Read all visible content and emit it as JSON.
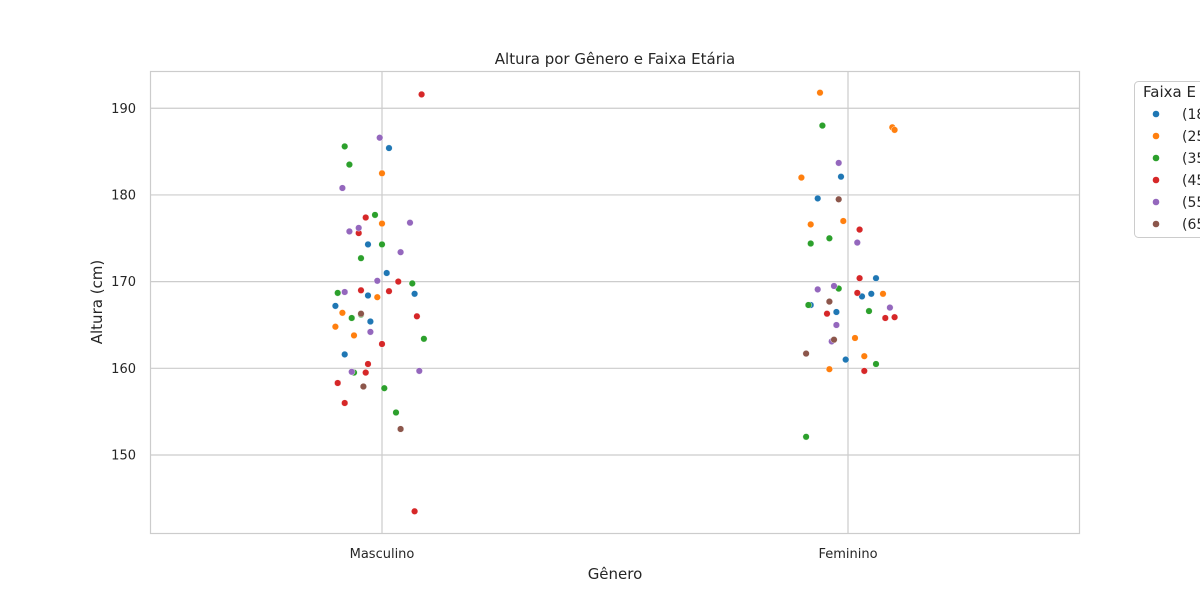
{
  "chart_data": {
    "type": "scatter",
    "title": "Altura por Gênero e Faixa Etária",
    "xlabel": "Gênero",
    "ylabel": "Altura (cm)",
    "categories": [
      "Masculino",
      "Feminino"
    ],
    "ylim": [
      141,
      194.3
    ],
    "yticks": [
      150,
      160,
      170,
      180,
      190
    ],
    "grid": true,
    "legend": {
      "title": "Faixa E",
      "placement": "outside-right"
    },
    "series": [
      {
        "name": "(18",
        "color": "#1f77b4",
        "points": [
          {
            "x": "Masculino",
            "jitter": -0.1,
            "y": 167.2
          },
          {
            "x": "Masculino",
            "jitter": -0.08,
            "y": 161.6
          },
          {
            "x": "Masculino",
            "jitter": -0.03,
            "y": 168.4
          },
          {
            "x": "Masculino",
            "jitter": -0.03,
            "y": 174.3
          },
          {
            "x": "Masculino",
            "jitter": -0.025,
            "y": 165.4
          },
          {
            "x": "Masculino",
            "jitter": 0.01,
            "y": 171.0
          },
          {
            "x": "Masculino",
            "jitter": 0.015,
            "y": 185.4
          },
          {
            "x": "Masculino",
            "jitter": 0.07,
            "y": 168.6
          },
          {
            "x": "Feminino",
            "jitter": -0.08,
            "y": 167.3
          },
          {
            "x": "Feminino",
            "jitter": -0.065,
            "y": 179.6
          },
          {
            "x": "Feminino",
            "jitter": -0.025,
            "y": 166.5
          },
          {
            "x": "Feminino",
            "jitter": -0.015,
            "y": 182.1
          },
          {
            "x": "Feminino",
            "jitter": -0.005,
            "y": 161.0
          },
          {
            "x": "Feminino",
            "jitter": 0.03,
            "y": 168.3
          },
          {
            "x": "Feminino",
            "jitter": 0.05,
            "y": 168.6
          },
          {
            "x": "Feminino",
            "jitter": 0.06,
            "y": 170.4
          }
        ]
      },
      {
        "name": "(25",
        "color": "#ff7f0e",
        "points": [
          {
            "x": "Masculino",
            "jitter": -0.1,
            "y": 164.8
          },
          {
            "x": "Masculino",
            "jitter": -0.085,
            "y": 166.4
          },
          {
            "x": "Masculino",
            "jitter": -0.06,
            "y": 163.8
          },
          {
            "x": "Masculino",
            "jitter": -0.01,
            "y": 168.2
          },
          {
            "x": "Masculino",
            "jitter": 0.0,
            "y": 176.7
          },
          {
            "x": "Masculino",
            "jitter": 0.0,
            "y": 182.5
          },
          {
            "x": "Feminino",
            "jitter": -0.1,
            "y": 182.0
          },
          {
            "x": "Feminino",
            "jitter": -0.08,
            "y": 176.6
          },
          {
            "x": "Feminino",
            "jitter": -0.04,
            "y": 159.9
          },
          {
            "x": "Feminino",
            "jitter": -0.06,
            "y": 191.8
          },
          {
            "x": "Feminino",
            "jitter": -0.01,
            "y": 177.0
          },
          {
            "x": "Feminino",
            "jitter": 0.015,
            "y": 163.5
          },
          {
            "x": "Feminino",
            "jitter": 0.035,
            "y": 161.4
          },
          {
            "x": "Feminino",
            "jitter": 0.075,
            "y": 168.6
          },
          {
            "x": "Feminino",
            "jitter": 0.095,
            "y": 187.8
          },
          {
            "x": "Feminino",
            "jitter": 0.1,
            "y": 187.5
          }
        ]
      },
      {
        "name": "(35",
        "color": "#2ca02c",
        "points": [
          {
            "x": "Masculino",
            "jitter": -0.095,
            "y": 168.7
          },
          {
            "x": "Masculino",
            "jitter": -0.08,
            "y": 185.6
          },
          {
            "x": "Masculino",
            "jitter": -0.07,
            "y": 183.5
          },
          {
            "x": "Masculino",
            "jitter": -0.065,
            "y": 165.8
          },
          {
            "x": "Masculino",
            "jitter": -0.06,
            "y": 159.5
          },
          {
            "x": "Masculino",
            "jitter": -0.045,
            "y": 166.2
          },
          {
            "x": "Masculino",
            "jitter": -0.045,
            "y": 172.7
          },
          {
            "x": "Masculino",
            "jitter": -0.015,
            "y": 177.7
          },
          {
            "x": "Masculino",
            "jitter": 0.0,
            "y": 174.3
          },
          {
            "x": "Masculino",
            "jitter": 0.005,
            "y": 157.7
          },
          {
            "x": "Masculino",
            "jitter": 0.03,
            "y": 154.9
          },
          {
            "x": "Masculino",
            "jitter": 0.065,
            "y": 169.8
          },
          {
            "x": "Masculino",
            "jitter": 0.09,
            "y": 163.4
          },
          {
            "x": "Feminino",
            "jitter": -0.09,
            "y": 152.1
          },
          {
            "x": "Feminino",
            "jitter": -0.085,
            "y": 167.3
          },
          {
            "x": "Feminino",
            "jitter": -0.08,
            "y": 174.4
          },
          {
            "x": "Feminino",
            "jitter": -0.055,
            "y": 188.0
          },
          {
            "x": "Feminino",
            "jitter": -0.04,
            "y": 175.0
          },
          {
            "x": "Feminino",
            "jitter": -0.02,
            "y": 169.2
          },
          {
            "x": "Feminino",
            "jitter": 0.045,
            "y": 166.6
          },
          {
            "x": "Feminino",
            "jitter": 0.06,
            "y": 160.5
          }
        ]
      },
      {
        "name": "(45",
        "color": "#d62728",
        "points": [
          {
            "x": "Masculino",
            "jitter": -0.095,
            "y": 158.3
          },
          {
            "x": "Masculino",
            "jitter": -0.08,
            "y": 156.0
          },
          {
            "x": "Masculino",
            "jitter": -0.05,
            "y": 175.6
          },
          {
            "x": "Masculino",
            "jitter": -0.045,
            "y": 169.0
          },
          {
            "x": "Masculino",
            "jitter": -0.035,
            "y": 159.5
          },
          {
            "x": "Masculino",
            "jitter": -0.035,
            "y": 177.4
          },
          {
            "x": "Masculino",
            "jitter": -0.03,
            "y": 160.5
          },
          {
            "x": "Masculino",
            "jitter": 0.0,
            "y": 162.8
          },
          {
            "x": "Masculino",
            "jitter": 0.015,
            "y": 168.9
          },
          {
            "x": "Masculino",
            "jitter": 0.035,
            "y": 170.0
          },
          {
            "x": "Masculino",
            "jitter": 0.07,
            "y": 143.5
          },
          {
            "x": "Masculino",
            "jitter": 0.075,
            "y": 166.0
          },
          {
            "x": "Masculino",
            "jitter": 0.085,
            "y": 191.6
          },
          {
            "x": "Feminino",
            "jitter": -0.045,
            "y": 166.3
          },
          {
            "x": "Feminino",
            "jitter": 0.02,
            "y": 168.7
          },
          {
            "x": "Feminino",
            "jitter": 0.025,
            "y": 170.4
          },
          {
            "x": "Feminino",
            "jitter": 0.025,
            "y": 176.0
          },
          {
            "x": "Feminino",
            "jitter": 0.035,
            "y": 159.7
          },
          {
            "x": "Feminino",
            "jitter": 0.08,
            "y": 165.8
          },
          {
            "x": "Feminino",
            "jitter": 0.1,
            "y": 165.9
          }
        ]
      },
      {
        "name": "(55",
        "color": "#9467bd",
        "points": [
          {
            "x": "Masculino",
            "jitter": -0.085,
            "y": 180.8
          },
          {
            "x": "Masculino",
            "jitter": -0.08,
            "y": 168.8
          },
          {
            "x": "Masculino",
            "jitter": -0.07,
            "y": 175.8
          },
          {
            "x": "Masculino",
            "jitter": -0.065,
            "y": 159.6
          },
          {
            "x": "Masculino",
            "jitter": -0.05,
            "y": 176.2
          },
          {
            "x": "Masculino",
            "jitter": -0.025,
            "y": 164.2
          },
          {
            "x": "Masculino",
            "jitter": -0.01,
            "y": 170.1
          },
          {
            "x": "Masculino",
            "jitter": -0.005,
            "y": 186.6
          },
          {
            "x": "Masculino",
            "jitter": 0.04,
            "y": 173.4
          },
          {
            "x": "Masculino",
            "jitter": 0.06,
            "y": 176.8
          },
          {
            "x": "Masculino",
            "jitter": 0.08,
            "y": 159.7
          },
          {
            "x": "Feminino",
            "jitter": -0.065,
            "y": 169.1
          },
          {
            "x": "Feminino",
            "jitter": -0.035,
            "y": 163.1
          },
          {
            "x": "Feminino",
            "jitter": -0.03,
            "y": 169.5
          },
          {
            "x": "Feminino",
            "jitter": -0.025,
            "y": 165.0
          },
          {
            "x": "Feminino",
            "jitter": -0.02,
            "y": 183.7
          },
          {
            "x": "Feminino",
            "jitter": 0.02,
            "y": 174.5
          },
          {
            "x": "Feminino",
            "jitter": 0.09,
            "y": 167.0
          }
        ]
      },
      {
        "name": "(65",
        "color": "#8c564b",
        "points": [
          {
            "x": "Masculino",
            "jitter": -0.045,
            "y": 166.3
          },
          {
            "x": "Masculino",
            "jitter": -0.04,
            "y": 157.9
          },
          {
            "x": "Masculino",
            "jitter": 0.04,
            "y": 153.0
          },
          {
            "x": "Feminino",
            "jitter": -0.09,
            "y": 161.7
          },
          {
            "x": "Feminino",
            "jitter": -0.04,
            "y": 167.7
          },
          {
            "x": "Feminino",
            "jitter": -0.03,
            "y": 163.3
          },
          {
            "x": "Feminino",
            "jitter": -0.02,
            "y": 179.5
          }
        ]
      }
    ]
  }
}
